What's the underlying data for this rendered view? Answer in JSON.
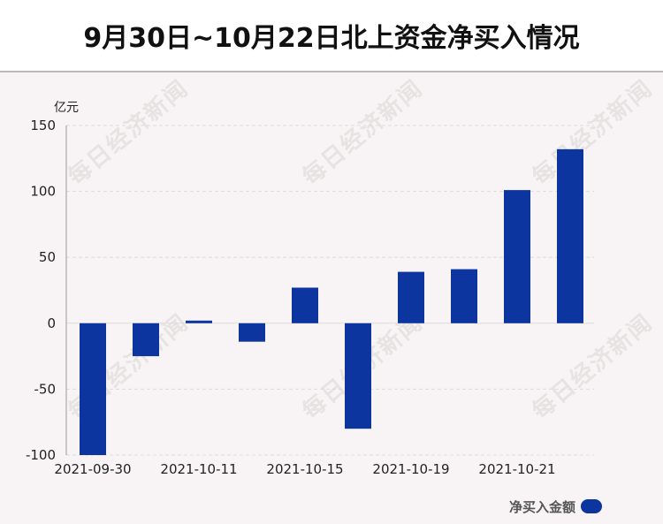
{
  "title": "9月30日~10月22日北上资金净买入情况",
  "watermark": "每日经济新闻",
  "colors": {
    "bar": "#0c35a0",
    "grid": "#dcdcdc",
    "text": "#222222"
  },
  "chart_data": {
    "type": "bar",
    "title": "9月30日~10月22日北上资金净买入情况",
    "unit_label": "亿元",
    "ylim": [
      -100,
      150
    ],
    "yticks": [
      150,
      100,
      50,
      0,
      -50,
      -100
    ],
    "x_tick_labels": [
      "2021-09-30",
      "2021-10-11",
      "2021-10-15",
      "2021-10-19",
      "2021-10-21"
    ],
    "x_tick_indices": [
      0,
      2,
      4,
      6,
      8
    ],
    "values": [
      -100,
      -25,
      2,
      -14,
      27,
      -80,
      39,
      41,
      101,
      132
    ],
    "grid": true,
    "legend_position": "bottom-right",
    "series": [
      {
        "name": "净买入金额"
      }
    ]
  }
}
